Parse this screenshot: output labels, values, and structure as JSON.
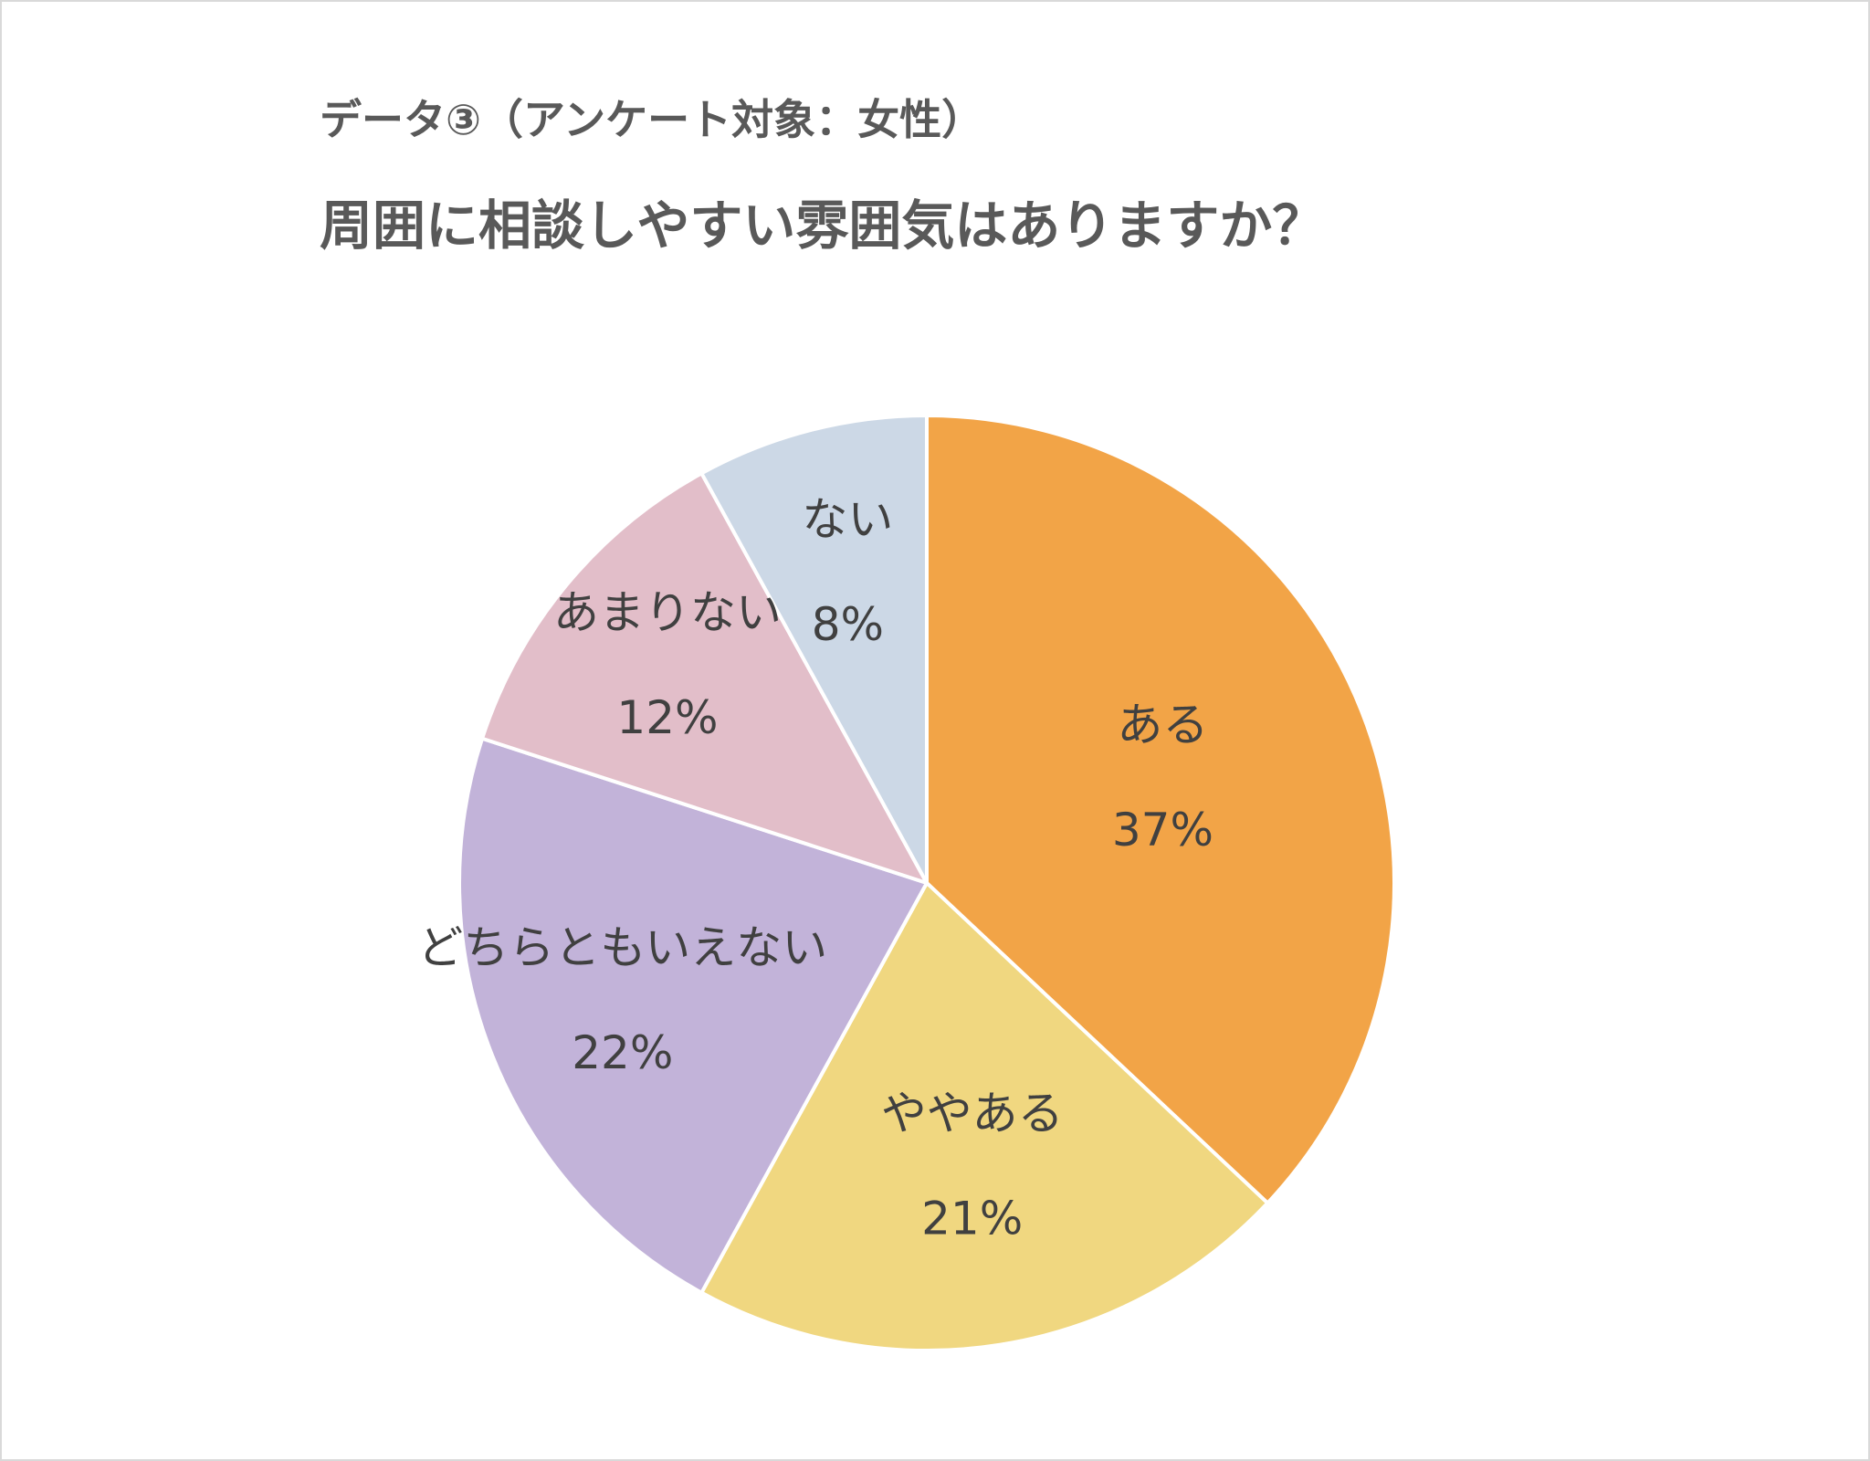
{
  "header": {
    "subtitle": "データ③（アンケート対象：女性）",
    "title": "周囲に相談しやすい雰囲気はありますか？"
  },
  "chart_data": {
    "type": "pie",
    "subtitle": "データ③（アンケート対象：女性）",
    "title": "周囲に相談しやすい雰囲気はありますか？",
    "start_angle": "12 o'clock",
    "direction": "clockwise",
    "slices": [
      {
        "label": "ある",
        "value": 37,
        "value_label": "37%",
        "color": "#f2a447"
      },
      {
        "label": "ややある",
        "value": 21,
        "value_label": "21%",
        "color": "#f0d780"
      },
      {
        "label": "どちらともいえない",
        "value": 22,
        "value_label": "22%",
        "color": "#c2b3d9"
      },
      {
        "label": "あまりない",
        "value": 12,
        "value_label": "12%",
        "color": "#e2bec9"
      },
      {
        "label": "ない",
        "value": 8,
        "value_label": "8%",
        "color": "#ccd8e6"
      }
    ]
  }
}
